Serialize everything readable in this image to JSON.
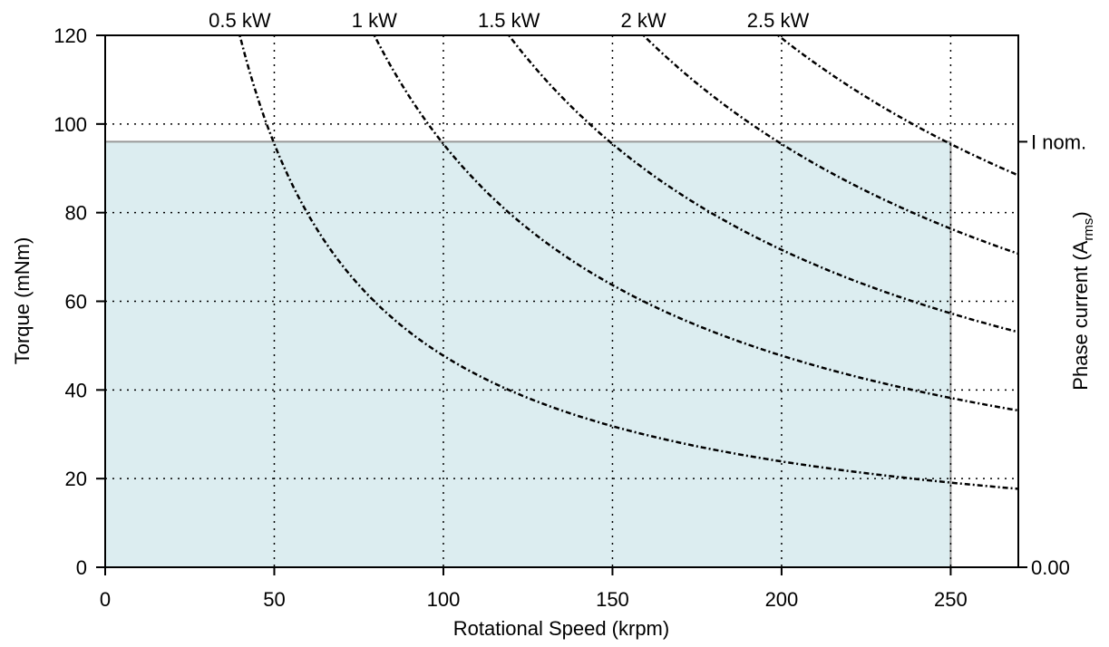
{
  "chart_data": {
    "type": "line",
    "xlabel": "Rotational Speed (krpm)",
    "ylabel": "Torque (mNm)",
    "y2label": {
      "main": "Phase current (A",
      "sub": "rms",
      "close": ")"
    },
    "xlim": [
      0,
      270
    ],
    "ylim": [
      0,
      120
    ],
    "xticks": [
      0,
      50,
      100,
      150,
      200,
      250
    ],
    "yticks": [
      0,
      20,
      40,
      60,
      80,
      100,
      120
    ],
    "y2ticks": [
      {
        "label": "0.00",
        "torque": 0
      },
      {
        "label": "I nom.",
        "torque": 96
      }
    ],
    "grid": "dotted",
    "operating_region": {
      "speed_max": 250,
      "torque_max": 96,
      "color": "#dcedf0",
      "edge_color": "#999999"
    },
    "series": [
      {
        "name": "0.5 kW",
        "power_kw": 0.5,
        "x": [
          39.8,
          50,
          75,
          100,
          125,
          150,
          175,
          200,
          225,
          250,
          270
        ],
        "y": [
          120,
          95.5,
          63.7,
          47.7,
          38.2,
          31.8,
          27.3,
          23.9,
          21.2,
          19.1,
          17.7
        ]
      },
      {
        "name": "1 kW",
        "power_kw": 1.0,
        "x": [
          79.6,
          100,
          125,
          150,
          175,
          200,
          225,
          250,
          270
        ],
        "y": [
          120,
          95.5,
          76.4,
          63.7,
          54.6,
          47.7,
          42.4,
          38.2,
          35.4
        ]
      },
      {
        "name": "1.5 kW",
        "power_kw": 1.5,
        "x": [
          119.4,
          150,
          175,
          200,
          225,
          250,
          270
        ],
        "y": [
          120,
          95.5,
          81.9,
          71.6,
          63.7,
          57.3,
          53.1
        ]
      },
      {
        "name": "2 kW",
        "power_kw": 2.0,
        "x": [
          159.2,
          175,
          200,
          225,
          250,
          270
        ],
        "y": [
          120,
          109.1,
          95.5,
          84.9,
          76.4,
          70.7
        ]
      },
      {
        "name": "2.5 kW",
        "power_kw": 2.5,
        "x": [
          198.9,
          225,
          250,
          270
        ],
        "y": [
          120,
          106.1,
          95.5,
          88.4
        ]
      }
    ]
  }
}
